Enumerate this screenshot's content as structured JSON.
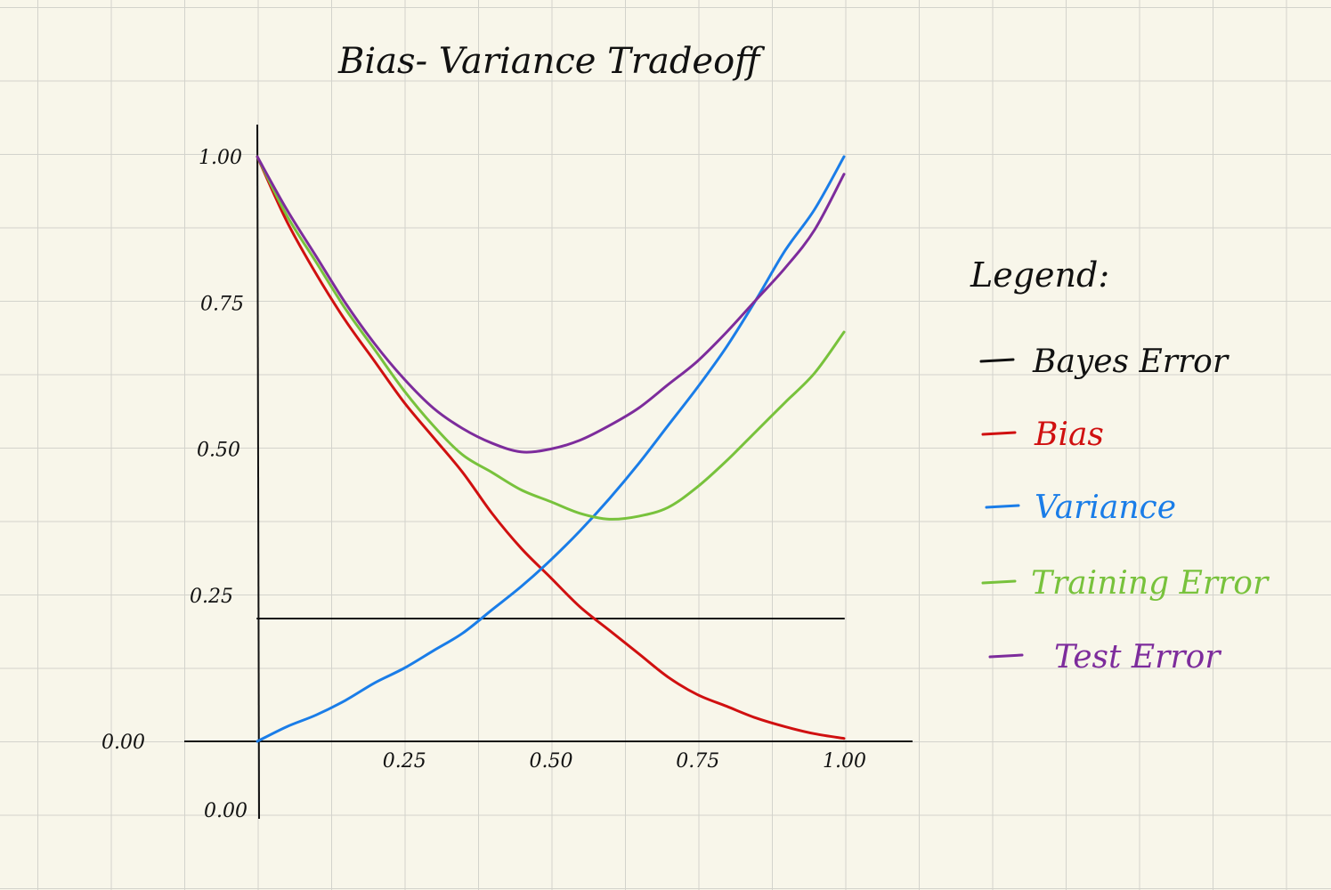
{
  "chart_data": {
    "type": "line",
    "title": "Bias- Variance Tradeoff",
    "xlabel": "",
    "ylabel": "",
    "xlim": [
      0,
      1
    ],
    "ylim": [
      0,
      1
    ],
    "x_ticks": [
      "0.25",
      "0.50",
      "0.75",
      "1.00"
    ],
    "y_ticks": [
      "0.00",
      "0.25",
      "0.50",
      "0.75",
      "1.00"
    ],
    "extra_tick_labels": [
      "0.00"
    ],
    "grid": true,
    "legend": {
      "title": "Legend:",
      "position": "right"
    },
    "series": [
      {
        "name": "Bayes Error",
        "color": "#111111",
        "x": [
          0,
          1
        ],
        "y": [
          0.21,
          0.21
        ]
      },
      {
        "name": "Bias",
        "color": "#d01010",
        "x": [
          0,
          0.05,
          0.1,
          0.15,
          0.2,
          0.25,
          0.3,
          0.35,
          0.4,
          0.45,
          0.5,
          0.55,
          0.6,
          0.65,
          0.7,
          0.75,
          0.8,
          0.85,
          0.9,
          0.95,
          1.0
        ],
        "y": [
          1.0,
          0.89,
          0.8,
          0.72,
          0.65,
          0.58,
          0.52,
          0.46,
          0.39,
          0.33,
          0.28,
          0.23,
          0.19,
          0.15,
          0.11,
          0.08,
          0.06,
          0.04,
          0.025,
          0.013,
          0.005
        ]
      },
      {
        "name": "Variance",
        "color": "#1a7de8",
        "x": [
          0,
          0.05,
          0.1,
          0.15,
          0.2,
          0.25,
          0.3,
          0.35,
          0.4,
          0.45,
          0.5,
          0.55,
          0.6,
          0.65,
          0.7,
          0.75,
          0.8,
          0.85,
          0.9,
          0.95,
          1.0
        ],
        "y": [
          0.0,
          0.025,
          0.045,
          0.07,
          0.1,
          0.125,
          0.155,
          0.185,
          0.225,
          0.265,
          0.31,
          0.36,
          0.415,
          0.475,
          0.54,
          0.605,
          0.675,
          0.755,
          0.84,
          0.91,
          1.0
        ]
      },
      {
        "name": "Training Error",
        "color": "#78c23c",
        "x": [
          0,
          0.05,
          0.1,
          0.15,
          0.2,
          0.25,
          0.3,
          0.35,
          0.4,
          0.45,
          0.5,
          0.55,
          0.6,
          0.65,
          0.7,
          0.75,
          0.8,
          0.85,
          0.9,
          0.95,
          1.0
        ],
        "y": [
          1.0,
          0.9,
          0.82,
          0.74,
          0.67,
          0.6,
          0.54,
          0.49,
          0.46,
          0.43,
          0.41,
          0.39,
          0.38,
          0.385,
          0.4,
          0.435,
          0.48,
          0.53,
          0.58,
          0.63,
          0.7
        ]
      },
      {
        "name": "Test Error",
        "color": "#7d2c9c",
        "x": [
          0,
          0.05,
          0.1,
          0.15,
          0.2,
          0.25,
          0.3,
          0.35,
          0.4,
          0.45,
          0.5,
          0.55,
          0.6,
          0.65,
          0.7,
          0.75,
          0.8,
          0.85,
          0.9,
          0.95,
          1.0
        ],
        "y": [
          1.0,
          0.91,
          0.83,
          0.75,
          0.68,
          0.62,
          0.57,
          0.535,
          0.51,
          0.495,
          0.5,
          0.515,
          0.54,
          0.57,
          0.61,
          0.65,
          0.7,
          0.755,
          0.81,
          0.875,
          0.97
        ]
      }
    ]
  }
}
